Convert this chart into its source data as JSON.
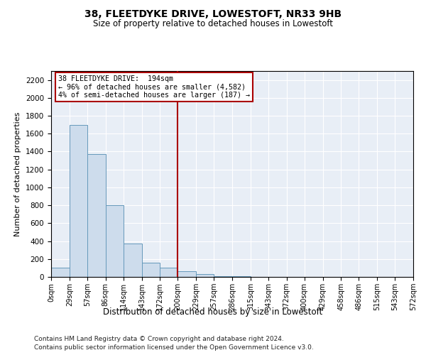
{
  "title": "38, FLEETDYKE DRIVE, LOWESTOFT, NR33 9HB",
  "subtitle": "Size of property relative to detached houses in Lowestoft",
  "xlabel": "Distribution of detached houses by size in Lowestoft",
  "ylabel": "Number of detached properties",
  "bar_color": "#cddcec",
  "bar_edge_color": "#6699bb",
  "background_color": "#e8eef6",
  "vline_x": 200,
  "vline_color": "#aa0000",
  "annotation_line1": "38 FLEETDYKE DRIVE:  194sqm",
  "annotation_line2": "← 96% of detached houses are smaller (4,582)",
  "annotation_line3": "4% of semi-detached houses are larger (187) →",
  "annotation_box_color": "#aa0000",
  "bin_edges": [
    0,
    29,
    57,
    86,
    114,
    143,
    172,
    200,
    229,
    257,
    286,
    315,
    343,
    372,
    400,
    429,
    458,
    486,
    515,
    543,
    572
  ],
  "bin_heights": [
    100,
    1700,
    1375,
    800,
    375,
    160,
    100,
    65,
    30,
    5,
    5,
    3,
    2,
    1,
    1,
    0,
    0,
    0,
    0,
    0
  ],
  "ylim": [
    0,
    2300
  ],
  "yticks": [
    0,
    200,
    400,
    600,
    800,
    1000,
    1200,
    1400,
    1600,
    1800,
    2000,
    2200
  ],
  "footer_line1": "Contains HM Land Registry data © Crown copyright and database right 2024.",
  "footer_line2": "Contains public sector information licensed under the Open Government Licence v3.0.",
  "figsize": [
    6.0,
    5.0
  ],
  "dpi": 100
}
